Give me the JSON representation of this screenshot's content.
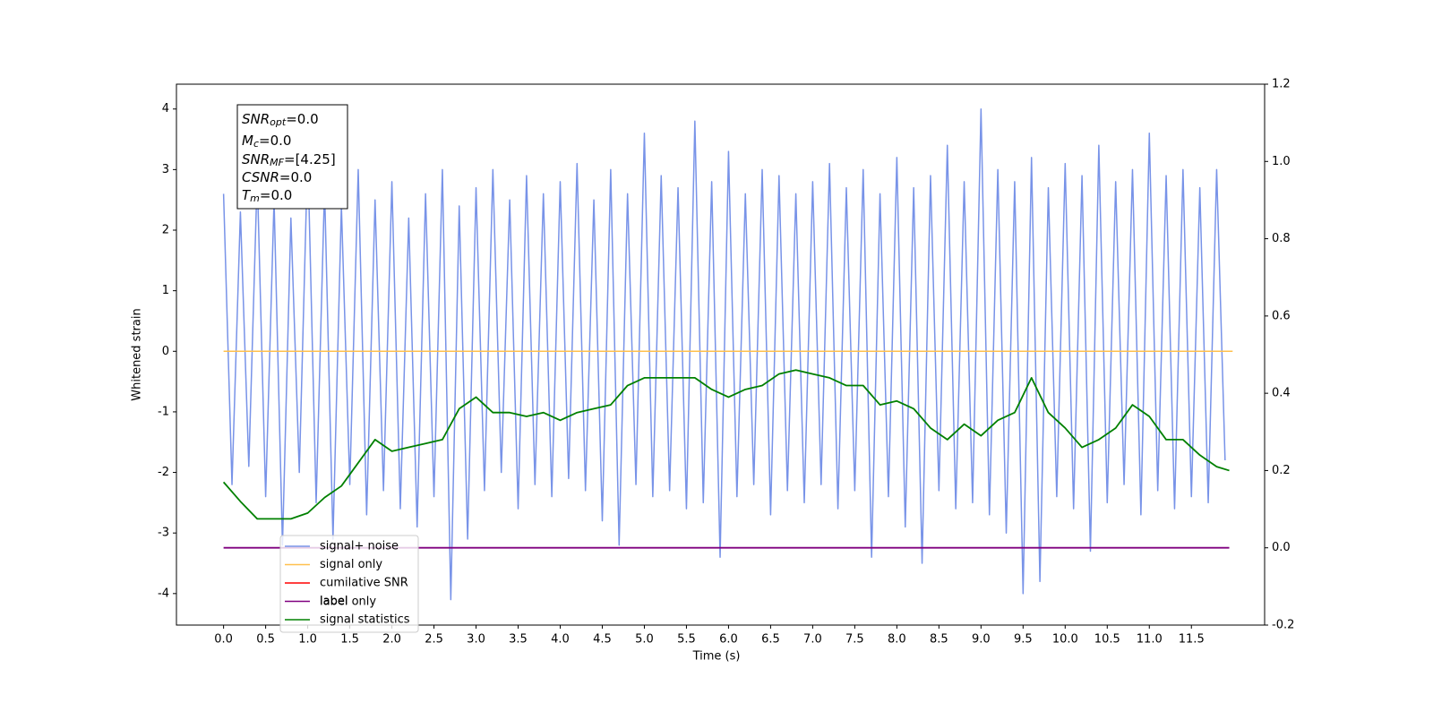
{
  "chart_data": {
    "type": "line",
    "xlabel": "Time (s)",
    "ylabel": "Whitened strain",
    "xlim": [
      -0.56,
      12.37
    ],
    "ylim": [
      -4.52,
      4.41
    ],
    "y2lim": [
      -0.2,
      1.2
    ],
    "xticks": [
      {
        "value": 0,
        "label": "0.0"
      },
      0.5,
      {
        "value": 1,
        "label": "1.0"
      },
      1.5,
      {
        "value": 2,
        "label": "2.0"
      },
      2.5,
      {
        "value": 3,
        "label": "3.0"
      },
      3.5,
      {
        "value": 4,
        "label": "4.0"
      },
      4.5,
      {
        "value": 5,
        "label": "5.0"
      },
      5.5,
      {
        "value": 6,
        "label": "6.0"
      },
      6.5,
      {
        "value": 7,
        "label": "7.0"
      },
      7.5,
      {
        "value": 8,
        "label": "8.0"
      },
      8.5,
      {
        "value": 9,
        "label": "9.0"
      },
      9.5,
      {
        "value": 10,
        "label": "10.0"
      },
      10.5,
      {
        "value": 11,
        "label": "11.0"
      },
      11.5
    ],
    "yticks": [
      -4,
      -3,
      -2,
      -1,
      0,
      1,
      2,
      3,
      4
    ],
    "y2ticks": [
      -0.2,
      {
        "value": 0,
        "label": "0.0"
      },
      0.2,
      0.4,
      0.6,
      0.8,
      {
        "value": 1,
        "label": "1.0"
      },
      1.2
    ],
    "series": [
      {
        "name": "signal+ noise",
        "color": "#7893e8",
        "x": [
          0.0,
          0.1,
          0.2,
          0.3,
          0.4,
          0.5,
          0.6,
          0.7,
          0.8,
          0.9,
          1.0,
          1.1,
          1.2,
          1.3,
          1.4,
          1.5,
          1.6,
          1.7,
          1.8,
          1.9,
          2.0,
          2.1,
          2.2,
          2.3,
          2.4,
          2.5,
          2.6,
          2.7,
          2.8,
          2.9,
          3.0,
          3.1,
          3.2,
          3.3,
          3.4,
          3.5,
          3.6,
          3.7,
          3.8,
          3.9,
          4.0,
          4.1,
          4.2,
          4.3,
          4.4,
          4.5,
          4.6,
          4.7,
          4.8,
          4.9,
          5.0,
          5.1,
          5.2,
          5.3,
          5.4,
          5.5,
          5.6,
          5.7,
          5.8,
          5.9,
          6.0,
          6.1,
          6.2,
          6.3,
          6.4,
          6.5,
          6.6,
          6.7,
          6.8,
          6.9,
          7.0,
          7.1,
          7.2,
          7.3,
          7.4,
          7.5,
          7.6,
          7.7,
          7.8,
          7.9,
          8.0,
          8.1,
          8.2,
          8.3,
          8.4,
          8.5,
          8.6,
          8.7,
          8.8,
          8.9,
          9.0,
          9.1,
          9.2,
          9.3,
          9.4,
          9.5,
          9.6,
          9.7,
          9.8,
          9.9,
          10.0,
          10.1,
          10.2,
          10.3,
          10.4,
          10.5,
          10.6,
          10.7,
          10.8,
          10.9,
          11.0,
          11.1,
          11.2,
          11.3,
          11.4,
          11.5,
          11.6,
          11.7,
          11.8,
          11.9
        ],
        "values": [
          2.6,
          -2.2,
          2.3,
          -1.9,
          2.9,
          -2.4,
          2.5,
          -3.2,
          2.2,
          -2.0,
          3.3,
          -2.5,
          2.7,
          -3.1,
          2.4,
          -2.2,
          3.0,
          -2.7,
          2.5,
          -2.3,
          2.8,
          -2.6,
          2.2,
          -2.9,
          2.6,
          -2.4,
          3.0,
          -4.1,
          2.4,
          -3.1,
          2.7,
          -2.3,
          3.0,
          -2.0,
          2.5,
          -2.6,
          2.9,
          -2.2,
          2.6,
          -2.4,
          2.8,
          -2.1,
          3.1,
          -2.3,
          2.5,
          -2.8,
          3.0,
          -3.2,
          2.6,
          -2.2,
          3.6,
          -2.4,
          2.9,
          -2.3,
          2.7,
          -2.6,
          3.8,
          -2.5,
          2.8,
          -3.4,
          3.3,
          -2.4,
          2.6,
          -2.2,
          3.0,
          -2.7,
          2.9,
          -2.3,
          2.6,
          -2.5,
          2.8,
          -2.2,
          3.1,
          -2.6,
          2.7,
          -2.3,
          3.0,
          -3.4,
          2.6,
          -2.4,
          3.2,
          -2.9,
          2.7,
          -3.5,
          2.9,
          -2.3,
          3.4,
          -2.6,
          2.8,
          -2.5,
          4.0,
          -2.7,
          3.0,
          -3.0,
          2.8,
          -4.0,
          3.2,
          -3.8,
          2.7,
          -2.4,
          3.1,
          -2.6,
          2.9,
          -3.3,
          3.4,
          -2.5,
          2.8,
          -2.2,
          3.0,
          -2.7,
          3.6,
          -2.3,
          2.9,
          -2.6,
          3.0,
          -2.4,
          2.7,
          -2.5,
          3.0,
          -1.8
        ]
      },
      {
        "name": "signal only",
        "color": "#ffc04d",
        "x": [
          0.0,
          11.99
        ],
        "values": [
          0,
          0
        ]
      },
      {
        "name": "cumilative SNR",
        "color": "#ff0000"
      },
      {
        "name": "label",
        "color": "#800080",
        "axis": "y2",
        "x": [
          0.0,
          11.95
        ],
        "values": [
          0,
          0
        ]
      },
      {
        "name": "signal statistics",
        "color": "#008000",
        "axis": "y2",
        "x": [
          0.0,
          0.2,
          0.4,
          0.6,
          0.8,
          1.0,
          1.2,
          1.4,
          1.6,
          1.8,
          2.0,
          2.2,
          2.4,
          2.6,
          2.8,
          3.0,
          3.2,
          3.4,
          3.6,
          3.8,
          4.0,
          4.2,
          4.4,
          4.6,
          4.8,
          5.0,
          5.2,
          5.4,
          5.6,
          5.8,
          6.0,
          6.2,
          6.4,
          6.6,
          6.8,
          7.0,
          7.2,
          7.4,
          7.6,
          7.8,
          8.0,
          8.2,
          8.4,
          8.6,
          8.8,
          9.0,
          9.2,
          9.4,
          9.6,
          9.8,
          10.0,
          10.2,
          10.4,
          10.6,
          10.8,
          11.0,
          11.2,
          11.4,
          11.6,
          11.8,
          11.95
        ],
        "values": [
          0.17,
          0.12,
          0.075,
          0.075,
          0.075,
          0.09,
          0.13,
          0.16,
          0.22,
          0.28,
          0.25,
          0.26,
          0.27,
          0.28,
          0.36,
          0.39,
          0.35,
          0.35,
          0.34,
          0.35,
          0.33,
          0.35,
          0.36,
          0.37,
          0.42,
          0.44,
          0.44,
          0.44,
          0.44,
          0.41,
          0.39,
          0.41,
          0.42,
          0.45,
          0.46,
          0.45,
          0.44,
          0.42,
          0.42,
          0.37,
          0.38,
          0.36,
          0.31,
          0.28,
          0.32,
          0.29,
          0.33,
          0.35,
          0.44,
          0.35,
          0.31,
          0.26,
          0.28,
          0.31,
          0.37,
          0.34,
          0.28,
          0.28,
          0.24,
          0.21,
          0.2
        ]
      }
    ],
    "legend_overlay": "label only",
    "annotation": [
      {
        "base": "SNR",
        "sub": "opt",
        "value": "=0.0"
      },
      {
        "base": "M",
        "sub": "c",
        "value": "=0.0"
      },
      {
        "base": "SNR",
        "sub": "MF",
        "value": "=[4.25]"
      },
      {
        "base": "CSNR",
        "value": "=0.0"
      },
      {
        "base": "T",
        "sub": "m",
        "value": "=0.0"
      }
    ]
  }
}
